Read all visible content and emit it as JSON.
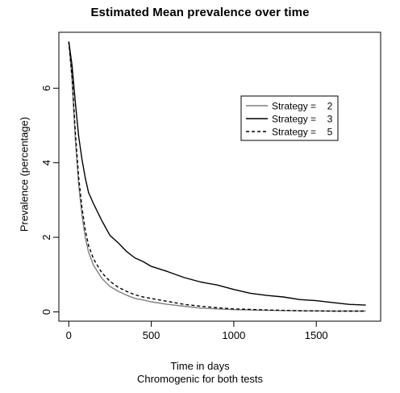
{
  "chart_data": {
    "type": "line",
    "title": "Estimated Mean prevalence over time",
    "xlabel": "Time in days",
    "subtitle": "Chromogenic for both tests",
    "ylabel": "Prevalence (percentage)",
    "xlim": [
      -60,
      1890
    ],
    "ylim": [
      -0.25,
      7.5
    ],
    "xticks": [
      0,
      500,
      1000,
      1500
    ],
    "yticks": [
      0,
      2,
      4,
      6
    ],
    "grid": false,
    "legend_position": "top-right",
    "series": [
      {
        "name": "Strategy = 2",
        "color": "#7f7f7f",
        "dash": "solid",
        "x": [
          0,
          20,
          40,
          60,
          80,
          100,
          120,
          150,
          200,
          250,
          300,
          350,
          400,
          450,
          500,
          600,
          700,
          800,
          900,
          1000,
          1200,
          1400,
          1600,
          1800
        ],
        "y": [
          7.25,
          6.2,
          4.6,
          3.4,
          2.6,
          2.0,
          1.6,
          1.25,
          0.9,
          0.68,
          0.55,
          0.45,
          0.36,
          0.32,
          0.27,
          0.2,
          0.15,
          0.1,
          0.08,
          0.06,
          0.04,
          0.03,
          0.02,
          0.02
        ]
      },
      {
        "name": "Strategy = 3",
        "color": "#000000",
        "dash": "solid",
        "x": [
          0,
          20,
          40,
          60,
          80,
          100,
          120,
          150,
          200,
          250,
          300,
          350,
          400,
          450,
          500,
          600,
          700,
          800,
          900,
          1000,
          1100,
          1200,
          1300,
          1400,
          1500,
          1600,
          1700,
          1800
        ],
        "y": [
          7.25,
          6.6,
          5.6,
          4.7,
          4.1,
          3.6,
          3.2,
          2.9,
          2.45,
          2.05,
          1.85,
          1.62,
          1.45,
          1.35,
          1.22,
          1.08,
          0.92,
          0.8,
          0.72,
          0.6,
          0.5,
          0.44,
          0.4,
          0.33,
          0.3,
          0.25,
          0.2,
          0.18
        ]
      },
      {
        "name": "Strategy = 5",
        "color": "#000000",
        "dash": "dashed",
        "x": [
          0,
          20,
          40,
          60,
          80,
          100,
          120,
          150,
          200,
          250,
          300,
          350,
          400,
          450,
          500,
          600,
          700,
          800,
          900,
          1000,
          1200,
          1400,
          1600,
          1800
        ],
        "y": [
          7.25,
          6.3,
          4.8,
          3.6,
          2.8,
          2.2,
          1.78,
          1.42,
          1.05,
          0.82,
          0.66,
          0.55,
          0.46,
          0.4,
          0.36,
          0.28,
          0.2,
          0.15,
          0.11,
          0.08,
          0.05,
          0.03,
          0.02,
          0.02
        ]
      }
    ],
    "legend": {
      "entries": [
        {
          "label": "Strategy = ",
          "value": "2",
          "color": "#7f7f7f",
          "dash": "solid"
        },
        {
          "label": "Strategy = ",
          "value": "3",
          "color": "#000000",
          "dash": "solid"
        },
        {
          "label": "Strategy = ",
          "value": "5",
          "color": "#000000",
          "dash": "dashed"
        }
      ]
    }
  }
}
